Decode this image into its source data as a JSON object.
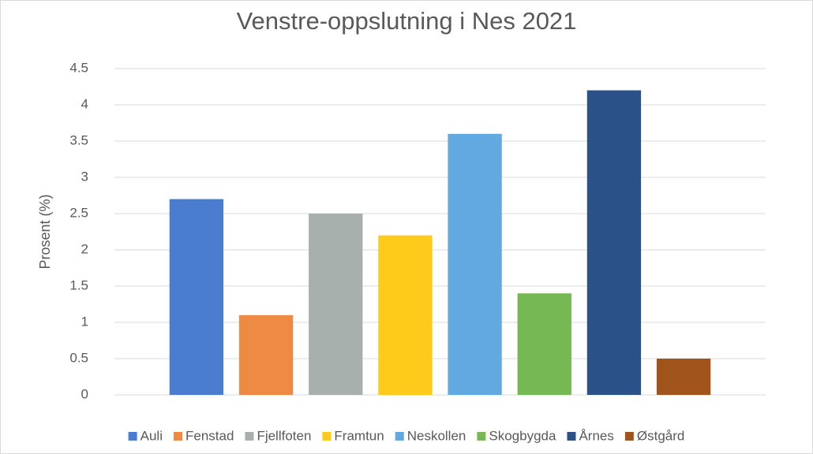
{
  "chart_data": {
    "type": "bar",
    "title": "Venstre-oppslutning i Nes 2021",
    "y_label": "Prosent (%)",
    "categories": [
      null
    ],
    "series": [
      {
        "name": "Auli",
        "color": "#4a7dd0",
        "values": [
          2.7
        ]
      },
      {
        "name": "Fenstad",
        "color": "#ef8a44",
        "values": [
          1.1
        ]
      },
      {
        "name": "Fjellfoten",
        "color": "#a7b0ad",
        "values": [
          2.5
        ]
      },
      {
        "name": "Framtun",
        "color": "#ffcb1a",
        "values": [
          2.2
        ]
      },
      {
        "name": "Neskollen",
        "color": "#62a9e2",
        "values": [
          3.6
        ]
      },
      {
        "name": "Skogbygda",
        "color": "#76b854",
        "values": [
          1.4
        ]
      },
      {
        "name": "Årnes",
        "color": "#2b5189",
        "values": [
          4.2
        ]
      },
      {
        "name": "Østgård",
        "color": "#a0541c",
        "values": [
          0.5
        ]
      }
    ],
    "ylim": [
      0,
      4.5
    ],
    "yticks": [
      0,
      0.5,
      1,
      1.5,
      2,
      2.5,
      3,
      3.5,
      4,
      4.5
    ],
    "grid": true,
    "legend": "bottom"
  }
}
